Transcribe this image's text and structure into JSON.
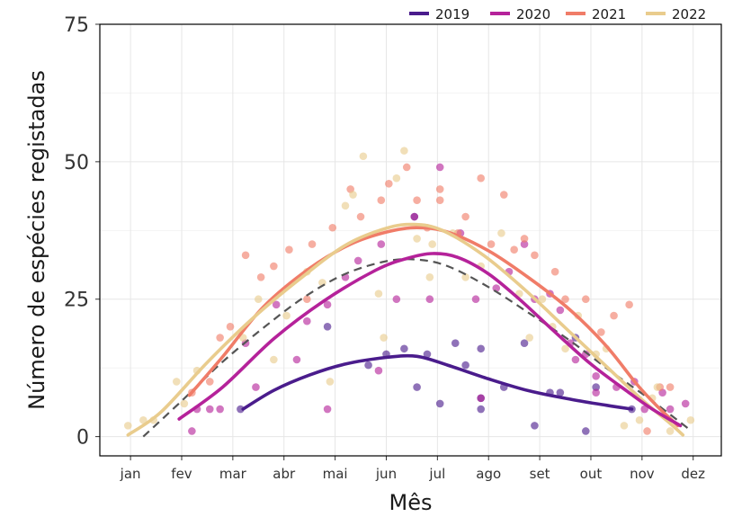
{
  "chart_data": {
    "type": "scatter",
    "xlabel": "Mês",
    "ylabel": "Número de espécies registadas",
    "x_ticks": [
      "jan",
      "fev",
      "mar",
      "abr",
      "mai",
      "jun",
      "jul",
      "ago",
      "set",
      "out",
      "nov",
      "dez"
    ],
    "y_ticks": [
      0,
      25,
      50,
      75
    ],
    "xlim": [
      0.4,
      12.55
    ],
    "ylim": [
      -3.5,
      75
    ],
    "grid": true,
    "legend_position": "top-right",
    "series": [
      {
        "name": "2019",
        "color": "#4a1c8c",
        "points": [
          [
            3.15,
            5
          ],
          [
            4.85,
            20
          ],
          [
            5.65,
            13
          ],
          [
            6.0,
            15
          ],
          [
            6.35,
            16
          ],
          [
            6.55,
            40
          ],
          [
            6.6,
            9
          ],
          [
            6.8,
            15
          ],
          [
            7.05,
            6
          ],
          [
            7.35,
            17
          ],
          [
            7.55,
            13
          ],
          [
            7.85,
            5
          ],
          [
            7.85,
            7
          ],
          [
            7.85,
            16
          ],
          [
            8.3,
            9
          ],
          [
            8.7,
            17
          ],
          [
            8.9,
            2
          ],
          [
            9.2,
            8
          ],
          [
            9.4,
            8
          ],
          [
            9.7,
            18
          ],
          [
            9.9,
            1
          ],
          [
            10.1,
            9
          ],
          [
            10.8,
            5
          ]
        ],
        "smooth": [
          [
            3.2,
            5
          ],
          [
            3.8,
            8.4
          ],
          [
            4.5,
            11.2
          ],
          [
            5.2,
            13.2
          ],
          [
            6.0,
            14.4
          ],
          [
            6.6,
            14.6
          ],
          [
            7.2,
            13
          ],
          [
            8.0,
            10.5
          ],
          [
            8.8,
            8.3
          ],
          [
            9.6,
            6.8
          ],
          [
            10.3,
            5.7
          ],
          [
            10.8,
            5
          ]
        ]
      },
      {
        "name": "2020",
        "color": "#b5229a",
        "points": [
          [
            2.2,
            1
          ],
          [
            2.3,
            5
          ],
          [
            2.55,
            5
          ],
          [
            2.75,
            5
          ],
          [
            3.25,
            17
          ],
          [
            3.45,
            9
          ],
          [
            3.85,
            24
          ],
          [
            4.25,
            14
          ],
          [
            4.45,
            21
          ],
          [
            4.85,
            5
          ],
          [
            4.85,
            24
          ],
          [
            5.2,
            29
          ],
          [
            5.45,
            32
          ],
          [
            5.85,
            12
          ],
          [
            5.9,
            35
          ],
          [
            6.2,
            25
          ],
          [
            6.55,
            40
          ],
          [
            6.85,
            25
          ],
          [
            7.05,
            49
          ],
          [
            7.45,
            37
          ],
          [
            7.75,
            25
          ],
          [
            7.85,
            7
          ],
          [
            8.15,
            27
          ],
          [
            8.4,
            30
          ],
          [
            8.7,
            35
          ],
          [
            8.9,
            25
          ],
          [
            9.2,
            26
          ],
          [
            9.4,
            23
          ],
          [
            9.6,
            17
          ],
          [
            9.7,
            14
          ],
          [
            9.9,
            15
          ],
          [
            10.1,
            11
          ],
          [
            10.1,
            8
          ],
          [
            10.5,
            9
          ],
          [
            10.85,
            10
          ],
          [
            11.05,
            5
          ],
          [
            11.4,
            8
          ],
          [
            11.55,
            5
          ],
          [
            11.85,
            6
          ]
        ],
        "smooth": [
          [
            1.95,
            3.2
          ],
          [
            2.8,
            9
          ],
          [
            3.8,
            17.8
          ],
          [
            4.8,
            24.8
          ],
          [
            5.8,
            30.3
          ],
          [
            6.4,
            32.4
          ],
          [
            6.9,
            33.3
          ],
          [
            7.4,
            32.6
          ],
          [
            8.0,
            29.6
          ],
          [
            8.6,
            25
          ],
          [
            9.3,
            19
          ],
          [
            10.0,
            13.2
          ],
          [
            10.7,
            8.3
          ],
          [
            11.2,
            5
          ],
          [
            11.75,
            2
          ]
        ]
      },
      {
        "name": "2021",
        "color": "#f07c68",
        "points": [
          [
            2.2,
            8
          ],
          [
            2.55,
            10
          ],
          [
            2.75,
            18
          ],
          [
            2.95,
            20
          ],
          [
            3.25,
            33
          ],
          [
            3.55,
            29
          ],
          [
            3.8,
            31
          ],
          [
            4.1,
            34
          ],
          [
            4.45,
            25
          ],
          [
            4.55,
            35
          ],
          [
            4.95,
            38
          ],
          [
            5.3,
            45
          ],
          [
            5.5,
            40
          ],
          [
            5.9,
            43
          ],
          [
            6.05,
            46
          ],
          [
            6.4,
            49
          ],
          [
            6.6,
            43
          ],
          [
            6.8,
            38
          ],
          [
            7.05,
            45
          ],
          [
            7.05,
            43
          ],
          [
            7.4,
            37
          ],
          [
            7.55,
            40
          ],
          [
            7.85,
            47
          ],
          [
            8.05,
            35
          ],
          [
            8.3,
            44
          ],
          [
            8.5,
            34
          ],
          [
            8.7,
            36
          ],
          [
            8.9,
            33
          ],
          [
            9.3,
            30
          ],
          [
            9.5,
            25
          ],
          [
            9.9,
            25
          ],
          [
            10.2,
            19
          ],
          [
            10.45,
            22
          ],
          [
            10.75,
            24
          ],
          [
            11.1,
            1
          ],
          [
            11.35,
            9
          ],
          [
            11.55,
            9
          ]
        ],
        "smooth": [
          [
            2.15,
            7.5
          ],
          [
            2.8,
            14.5
          ],
          [
            3.6,
            23.6
          ],
          [
            4.5,
            30.6
          ],
          [
            5.3,
            35
          ],
          [
            6.0,
            37.2
          ],
          [
            6.6,
            38
          ],
          [
            7.2,
            37.2
          ],
          [
            8.0,
            33.8
          ],
          [
            8.8,
            28.8
          ],
          [
            9.6,
            23
          ],
          [
            10.3,
            16.5
          ],
          [
            10.9,
            9.5
          ],
          [
            11.3,
            5.5
          ],
          [
            11.7,
            2
          ]
        ]
      },
      {
        "name": "2022",
        "color": "#e9cc8d",
        "points": [
          [
            0.95,
            2
          ],
          [
            1.25,
            3
          ],
          [
            1.45,
            3
          ],
          [
            1.9,
            10
          ],
          [
            2.05,
            6
          ],
          [
            2.3,
            12
          ],
          [
            3.2,
            18
          ],
          [
            3.5,
            25
          ],
          [
            3.8,
            14
          ],
          [
            4.05,
            22
          ],
          [
            4.45,
            30
          ],
          [
            4.75,
            28
          ],
          [
            4.9,
            10
          ],
          [
            5.2,
            42
          ],
          [
            5.35,
            44
          ],
          [
            5.55,
            51
          ],
          [
            5.85,
            26
          ],
          [
            5.95,
            18
          ],
          [
            6.2,
            47
          ],
          [
            6.35,
            52
          ],
          [
            6.6,
            36
          ],
          [
            6.85,
            29
          ],
          [
            6.9,
            35
          ],
          [
            7.3,
            37
          ],
          [
            7.55,
            29
          ],
          [
            7.85,
            31
          ],
          [
            8.25,
            37
          ],
          [
            8.6,
            26
          ],
          [
            8.8,
            18
          ],
          [
            9.05,
            25
          ],
          [
            9.25,
            20
          ],
          [
            9.5,
            16
          ],
          [
            9.75,
            22
          ],
          [
            10.1,
            15
          ],
          [
            10.3,
            16
          ],
          [
            10.65,
            2
          ],
          [
            10.95,
            3
          ],
          [
            11.2,
            7
          ],
          [
            11.3,
            9
          ],
          [
            11.55,
            1
          ],
          [
            11.95,
            3
          ]
        ],
        "smooth": [
          [
            0.95,
            0.3
          ],
          [
            1.6,
            4.5
          ],
          [
            2.5,
            13.5
          ],
          [
            3.4,
            21.6
          ],
          [
            4.3,
            28.6
          ],
          [
            5.2,
            34.8
          ],
          [
            6.0,
            37.9
          ],
          [
            6.55,
            38.6
          ],
          [
            7.1,
            37.5
          ],
          [
            7.9,
            33
          ],
          [
            8.7,
            26.8
          ],
          [
            9.5,
            19.8
          ],
          [
            10.3,
            12.8
          ],
          [
            11.0,
            6.7
          ],
          [
            11.5,
            2.8
          ],
          [
            11.8,
            0.3
          ]
        ]
      }
    ],
    "overall_trend": {
      "style": "dashed",
      "color": "#555555",
      "smooth": [
        [
          1.25,
          0
        ],
        [
          2.0,
          6.5
        ],
        [
          2.8,
          13.6
        ],
        [
          3.6,
          19.8
        ],
        [
          4.4,
          25.4
        ],
        [
          5.2,
          29.6
        ],
        [
          6.0,
          31.9
        ],
        [
          6.6,
          32.2
        ],
        [
          7.2,
          31
        ],
        [
          8.0,
          27.2
        ],
        [
          8.8,
          22.4
        ],
        [
          9.6,
          17.4
        ],
        [
          10.4,
          11.8
        ],
        [
          11.2,
          6.5
        ],
        [
          11.9,
          1.5
        ]
      ]
    }
  }
}
